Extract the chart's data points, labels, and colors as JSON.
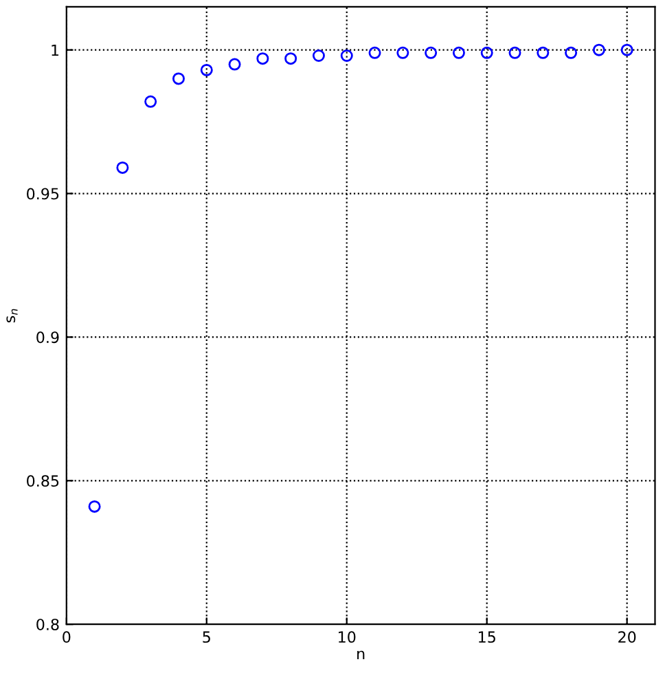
{
  "chart_data": {
    "type": "scatter",
    "xlabel": "n",
    "ylabel": "s$_{n}$",
    "x": [
      1,
      2,
      3,
      4,
      5,
      6,
      7,
      8,
      9,
      10,
      11,
      12,
      13,
      14,
      15,
      16,
      17,
      18,
      19,
      20
    ],
    "values": [
      0.841,
      0.959,
      0.982,
      0.99,
      0.993,
      0.995,
      0.997,
      0.997,
      0.998,
      0.998,
      0.999,
      0.999,
      0.999,
      0.999,
      0.999,
      0.999,
      0.999,
      0.999,
      1.0,
      1.0
    ],
    "color": "#0000ff",
    "marker": "circle",
    "grid": true,
    "xlim": [
      0,
      21
    ],
    "ylim": [
      0.8,
      1.015
    ],
    "xticks": [
      0,
      5,
      10,
      15,
      20
    ],
    "yticks": [
      0.8,
      0.85,
      0.9,
      0.95,
      1
    ]
  }
}
